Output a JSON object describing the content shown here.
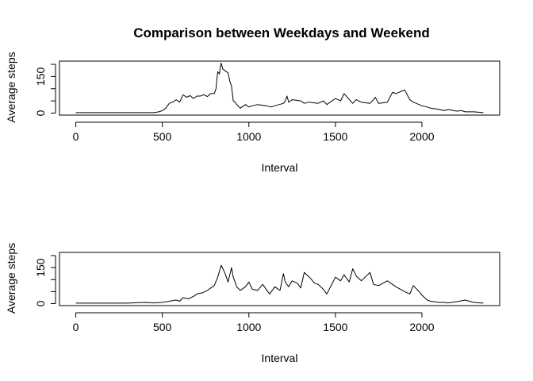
{
  "chart_data": {
    "type": "line",
    "title": "Comparison between Weekdays and Weekend",
    "panels": [
      {
        "xlabel": "Interval",
        "ylabel": "Average steps",
        "xlim": [
          0,
          2355
        ],
        "ylim": [
          0,
          205
        ],
        "x_ticks": [
          0,
          500,
          1000,
          1500,
          2000
        ],
        "y_ticks": [
          0,
          50,
          100,
          150,
          200
        ],
        "y_tick_labels": [
          "0",
          "",
          "",
          "150",
          ""
        ],
        "grid": false,
        "series": [
          {
            "x": [
              0,
              100,
              200,
              300,
              400,
              450,
              480,
              500,
              520,
              540,
              560,
              580,
              600,
              620,
              640,
              660,
              680,
              700,
              720,
              740,
              760,
              780,
              800,
              810,
              820,
              830,
              835,
              840,
              850,
              860,
              870,
              880,
              890,
              900,
              910,
              920,
              930,
              950,
              980,
              1000,
              1020,
              1050,
              1100,
              1130,
              1150,
              1200,
              1210,
              1220,
              1230,
              1250,
              1300,
              1320,
              1350,
              1400,
              1430,
              1450,
              1500,
              1530,
              1550,
              1600,
              1620,
              1650,
              1700,
              1720,
              1730,
              1750,
              1800,
              1830,
              1850,
              1900,
              1930,
              1950,
              2000,
              2030,
              2050,
              2100,
              2130,
              2150,
              2200,
              2230,
              2250,
              2300,
              2355
            ],
            "y": [
              2,
              2,
              2,
              2,
              2,
              2,
              5,
              10,
              20,
              40,
              45,
              55,
              45,
              75,
              65,
              72,
              60,
              70,
              70,
              75,
              68,
              80,
              80,
              100,
              170,
              160,
              190,
              205,
              180,
              175,
              170,
              165,
              130,
              110,
              50,
              45,
              35,
              20,
              35,
              25,
              30,
              35,
              30,
              25,
              30,
              40,
              50,
              70,
              45,
              55,
              50,
              40,
              45,
              40,
              50,
              35,
              60,
              50,
              80,
              40,
              55,
              45,
              40,
              55,
              65,
              40,
              45,
              85,
              80,
              95,
              55,
              45,
              30,
              25,
              20,
              15,
              10,
              15,
              8,
              10,
              5,
              5,
              2
            ]
          }
        ]
      },
      {
        "xlabel": "Interval",
        "ylabel": "Average steps",
        "xlim": [
          0,
          2355
        ],
        "ylim": [
          0,
          205
        ],
        "x_ticks": [
          0,
          500,
          1000,
          1500,
          2000
        ],
        "y_ticks": [
          0,
          50,
          100,
          150,
          200
        ],
        "y_tick_labels": [
          "0",
          "",
          "",
          "150",
          ""
        ],
        "grid": false,
        "series": [
          {
            "x": [
              0,
              100,
              200,
              300,
              400,
              450,
              500,
              540,
              580,
              600,
              620,
              650,
              680,
              700,
              730,
              760,
              800,
              820,
              840,
              860,
              880,
              900,
              910,
              930,
              950,
              980,
              1000,
              1020,
              1050,
              1080,
              1100,
              1120,
              1150,
              1180,
              1200,
              1210,
              1230,
              1250,
              1280,
              1300,
              1320,
              1350,
              1380,
              1400,
              1430,
              1450,
              1500,
              1530,
              1550,
              1580,
              1600,
              1620,
              1650,
              1700,
              1720,
              1750,
              1800,
              1830,
              1850,
              1900,
              1930,
              1950,
              1990,
              2000,
              2030,
              2050,
              2100,
              2130,
              2150,
              2200,
              2250,
              2300,
              2355
            ],
            "y": [
              2,
              2,
              2,
              2,
              5,
              3,
              5,
              10,
              15,
              10,
              25,
              20,
              30,
              40,
              45,
              55,
              75,
              110,
              160,
              130,
              90,
              150,
              110,
              70,
              55,
              70,
              90,
              60,
              55,
              80,
              60,
              40,
              70,
              55,
              125,
              90,
              70,
              95,
              85,
              65,
              130,
              110,
              85,
              80,
              60,
              40,
              110,
              95,
              120,
              90,
              145,
              115,
              95,
              130,
              80,
              75,
              95,
              80,
              70,
              50,
              40,
              75,
              45,
              35,
              15,
              10,
              5,
              5,
              3,
              8,
              15,
              5,
              2
            ]
          }
        ]
      }
    ]
  }
}
